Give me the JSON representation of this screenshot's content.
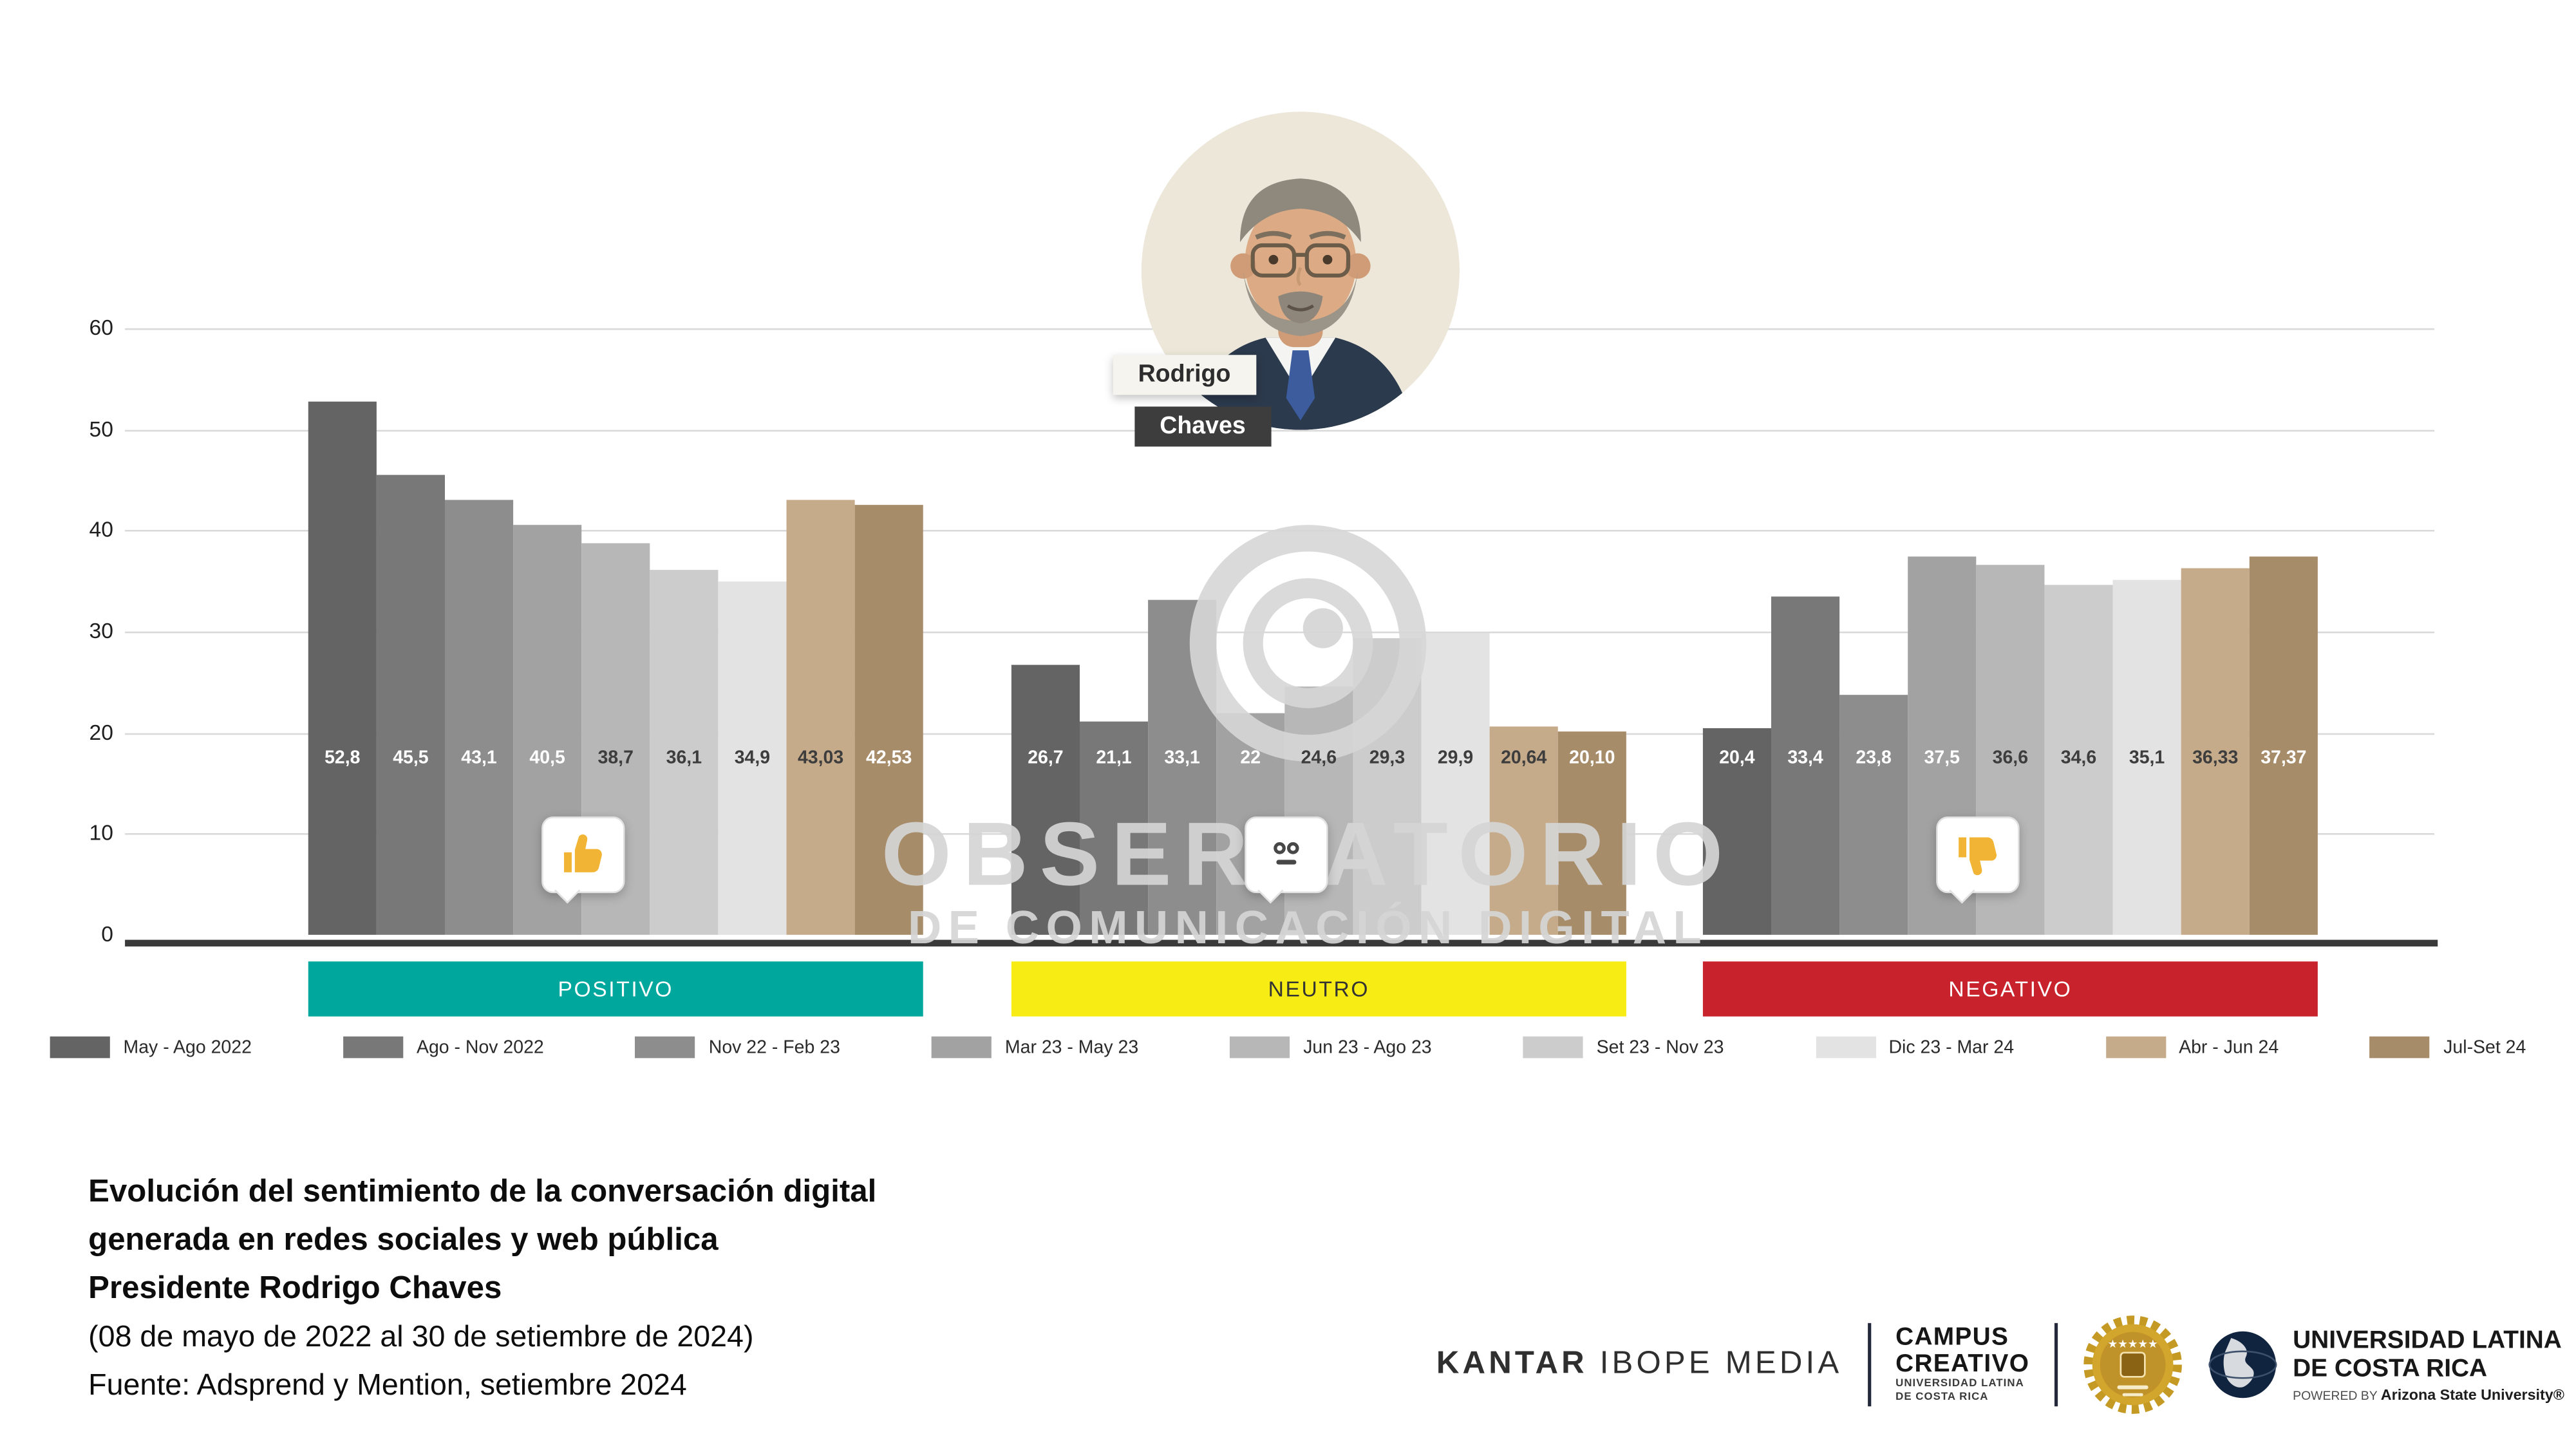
{
  "header": {
    "person": {
      "first_name": "Rodrigo",
      "last_name": "Chaves"
    }
  },
  "watermark": {
    "line1": "OBSERVATORIO",
    "line2": "DE COMUNICACIÓN DIGITAL"
  },
  "chart_data": {
    "type": "bar",
    "title": "Evolución del sentimiento de la conversación digital - Presidente Rodrigo Chaves",
    "ylim": [
      0,
      60
    ],
    "yticks": [
      0,
      10,
      20,
      30,
      40,
      50,
      60
    ],
    "grid": true,
    "legend_position": "bottom",
    "categories": [
      "May - Ago 2022",
      "Ago - Nov 2022",
      "Nov 22 - Feb 23",
      "Mar 23 - May 23",
      "Jun 23 - Ago 23",
      "Set 23 - Nov 23",
      "Dic 23 - Mar 24",
      "Abr - Jun 24",
      "Jul-Set 24"
    ],
    "palette": [
      "#646464",
      "#787878",
      "#8d8d8d",
      "#a2a2a2",
      "#b7b7b7",
      "#cccccc",
      "#e3e3e3",
      "#c6ab8b",
      "#a78c69"
    ],
    "label_text_colors": [
      "#ffffff",
      "#ffffff",
      "#ffffff",
      "#ffffff",
      "#3d3d3d",
      "#3d3d3d",
      "#3d3d3d",
      "#3d3d3d",
      "#ffffff"
    ],
    "series": [
      {
        "name": "POSITIVO",
        "band_color": "#00A79C",
        "band_text_color": "#ffffff",
        "icon": "thumbs-up",
        "values": [
          52.8,
          45.5,
          43.1,
          40.5,
          38.7,
          36.1,
          34.9,
          43.03,
          42.53
        ],
        "labels": [
          "52,8",
          "45,5",
          "43,1",
          "40,5",
          "38,7",
          "36,1",
          "34,9",
          "43,03",
          "42,53"
        ]
      },
      {
        "name": "NEUTRO",
        "band_color": "#F7EC13",
        "band_text_color": "#333333",
        "icon": "neutral-face",
        "values": [
          26.7,
          21.1,
          33.1,
          22,
          24.6,
          29.3,
          29.9,
          20.64,
          20.1
        ],
        "labels": [
          "26,7",
          "21,1",
          "33,1",
          "22",
          "24,6",
          "29,3",
          "29,9",
          "20,64",
          "20,10"
        ]
      },
      {
        "name": "NEGATIVO",
        "band_color": "#C8232C",
        "band_text_color": "#ffffff",
        "icon": "thumbs-down",
        "values": [
          20.4,
          33.4,
          23.8,
          37.5,
          36.6,
          34.6,
          35.1,
          36.33,
          37.37
        ],
        "labels": [
          "20,4",
          "33,4",
          "23,8",
          "37,5",
          "36,6",
          "34,6",
          "35,1",
          "36,33",
          "37,37"
        ]
      }
    ]
  },
  "footer": {
    "title_lines": [
      "Evolución del sentimiento de la conversación digital",
      "generada en redes sociales y web pública",
      "Presidente Rodrigo Chaves"
    ],
    "subtitle_lines": [
      "(08 de mayo de 2022 al 30 de setiembre de 2024)",
      "Fuente: Adsprend y Mention, setiembre 2024"
    ]
  },
  "logos": {
    "kantar": {
      "brand": "KANTAR",
      "suffix": "IBOPE MEDIA"
    },
    "campus": {
      "line1": "CAMPUS",
      "line2": "CREATIVO",
      "sub1": "UNIVERSIDAD LATINA",
      "sub2": "DE COSTA RICA"
    },
    "badge": {
      "stars": "★★★★★"
    },
    "latina": {
      "line1": "UNIVERSIDAD LATINA",
      "line2": "DE COSTA RICA",
      "powered_prefix": "POWERED BY",
      "powered_brand": "Arizona State University®"
    }
  }
}
